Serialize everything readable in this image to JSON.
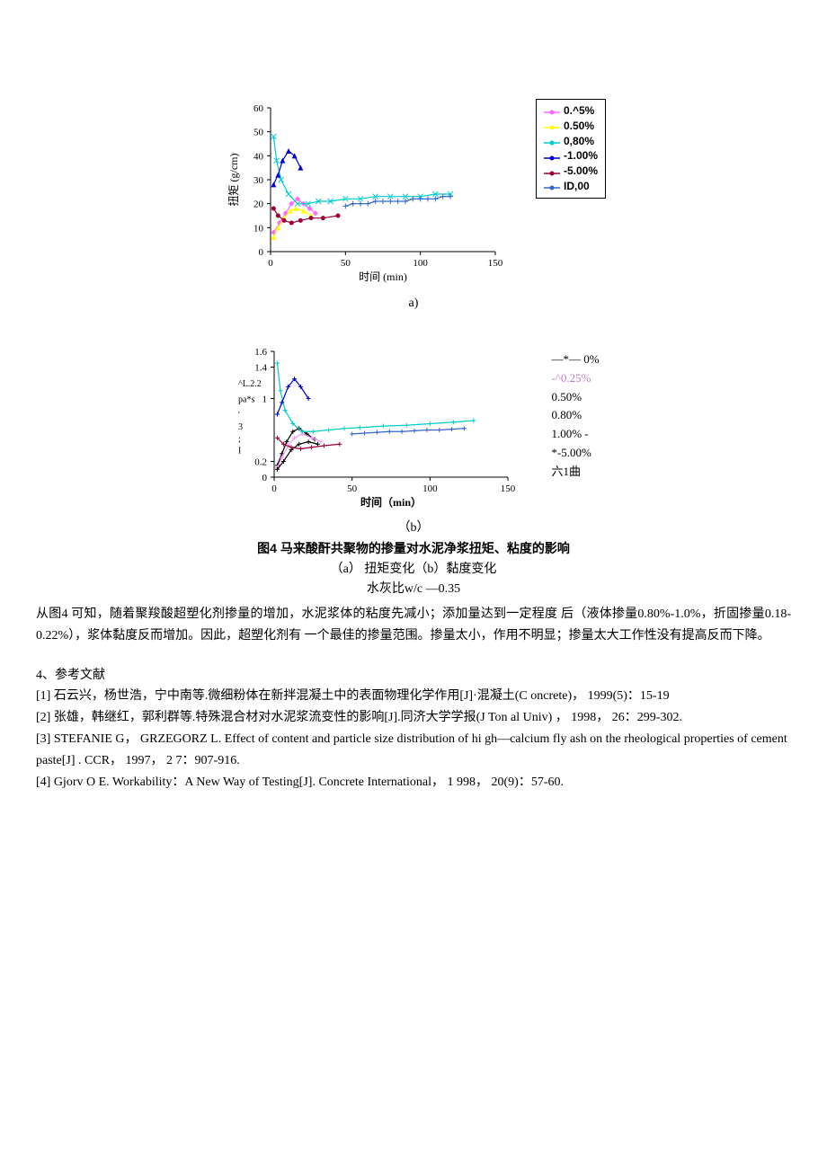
{
  "chart_a": {
    "type": "line",
    "categories": [
      0,
      50,
      100,
      150
    ],
    "ylim": [
      0,
      60
    ],
    "ytick_step": 10,
    "xlabel": "时间 (min)",
    "ylabel": "扭矩 (g/cm)",
    "label_fontsize": 12,
    "background_color": "#ffffff",
    "axis_color": "#000000",
    "series": [
      {
        "label": "0.^5%",
        "color": "#ff66ff",
        "marker": "diamond",
        "points": [
          [
            2,
            8
          ],
          [
            6,
            12
          ],
          [
            10,
            16
          ],
          [
            14,
            20
          ],
          [
            18,
            22
          ],
          [
            22,
            20
          ],
          [
            26,
            18
          ],
          [
            30,
            16
          ]
        ]
      },
      {
        "label": "0.50%",
        "color": "#ffff00",
        "marker": "triangle",
        "points": [
          [
            2,
            6
          ],
          [
            5,
            10
          ],
          [
            9,
            14
          ],
          [
            13,
            17
          ],
          [
            17,
            18
          ],
          [
            22,
            17
          ],
          [
            27,
            15
          ]
        ]
      },
      {
        "label": "0,80%",
        "color": "#00cccc",
        "marker": "x",
        "points": [
          [
            2,
            48
          ],
          [
            4,
            38
          ],
          [
            7,
            30
          ],
          [
            12,
            24
          ],
          [
            18,
            20
          ],
          [
            25,
            20
          ],
          [
            32,
            21
          ],
          [
            40,
            21
          ],
          [
            50,
            22
          ],
          [
            60,
            22
          ],
          [
            70,
            23
          ],
          [
            80,
            23
          ],
          [
            90,
            23
          ],
          [
            100,
            23
          ],
          [
            110,
            24
          ],
          [
            120,
            24
          ]
        ]
      },
      {
        "label": "-1.00%",
        "color": "#0000cc",
        "marker": "triangle",
        "points": [
          [
            2,
            28
          ],
          [
            5,
            32
          ],
          [
            8,
            38
          ],
          [
            12,
            42
          ],
          [
            16,
            40
          ],
          [
            20,
            35
          ]
        ]
      },
      {
        "label": "-5.00%",
        "color": "#990033",
        "marker": "star",
        "points": [
          [
            2,
            18
          ],
          [
            5,
            15
          ],
          [
            9,
            13
          ],
          [
            14,
            12
          ],
          [
            20,
            13
          ],
          [
            27,
            14
          ],
          [
            35,
            14
          ],
          [
            45,
            15
          ]
        ]
      },
      {
        "label": "ID,00",
        "color": "#3366cc",
        "marker": "plus",
        "points": [
          [
            50,
            19
          ],
          [
            55,
            20
          ],
          [
            60,
            20
          ],
          [
            65,
            20
          ],
          [
            70,
            21
          ],
          [
            75,
            21
          ],
          [
            80,
            21
          ],
          [
            85,
            21
          ],
          [
            90,
            21
          ],
          [
            95,
            22
          ],
          [
            100,
            22
          ],
          [
            105,
            22
          ],
          [
            110,
            22
          ],
          [
            115,
            23
          ],
          [
            120,
            23
          ]
        ]
      }
    ]
  },
  "caption_a": "a)",
  "chart_b": {
    "type": "line",
    "categories": [
      0,
      50,
      100,
      150
    ],
    "ylim": [
      0,
      1.6
    ],
    "yticks": [
      0,
      0.2,
      1,
      1.4,
      1.6
    ],
    "ytick_labels": [
      "0",
      "0.2",
      "1",
      "1.4",
      "1.6"
    ],
    "mid_labels": [
      "^L.2.2",
      "pa*s",
      "'",
      "3",
      ";",
      "I"
    ],
    "xlabel": "时间（min）",
    "label_fontsize": 12,
    "background_color": "#ffffff",
    "axis_color": "#000000",
    "series": [
      {
        "label": "—*—  0%",
        "color": "#000000",
        "points": [
          [
            2,
            0.15
          ],
          [
            5,
            0.3
          ],
          [
            8,
            0.45
          ],
          [
            12,
            0.58
          ],
          [
            16,
            0.62
          ],
          [
            21,
            0.55
          ],
          [
            26,
            0.48
          ]
        ]
      },
      {
        "label": "-^0.25%",
        "color": "#ff99ff",
        "points": [
          [
            2,
            0.12
          ],
          [
            5,
            0.25
          ],
          [
            9,
            0.4
          ],
          [
            13,
            0.5
          ],
          [
            18,
            0.55
          ],
          [
            24,
            0.5
          ],
          [
            30,
            0.45
          ]
        ]
      },
      {
        "label": "0.50%",
        "color": "#000000",
        "points": [
          [
            2,
            0.1
          ],
          [
            6,
            0.2
          ],
          [
            11,
            0.35
          ],
          [
            16,
            0.42
          ],
          [
            22,
            0.45
          ],
          [
            28,
            0.42
          ]
        ]
      },
      {
        "label": "0.80%",
        "color": "#00cccc",
        "points": [
          [
            2,
            1.45
          ],
          [
            4,
            1.1
          ],
          [
            7,
            0.85
          ],
          [
            12,
            0.68
          ],
          [
            18,
            0.58
          ],
          [
            25,
            0.58
          ],
          [
            35,
            0.6
          ],
          [
            45,
            0.62
          ],
          [
            55,
            0.63
          ],
          [
            70,
            0.65
          ],
          [
            85,
            0.66
          ],
          [
            100,
            0.68
          ],
          [
            115,
            0.7
          ],
          [
            128,
            0.72
          ]
        ]
      },
      {
        "label": "1.00% -",
        "color": "#0000cc",
        "points": [
          [
            2,
            0.8
          ],
          [
            5,
            0.95
          ],
          [
            9,
            1.15
          ],
          [
            13,
            1.25
          ],
          [
            17,
            1.15
          ],
          [
            22,
            1.0
          ]
        ]
      },
      {
        "label": "*-5.00%",
        "color": "#990033",
        "points": [
          [
            2,
            0.5
          ],
          [
            6,
            0.42
          ],
          [
            11,
            0.38
          ],
          [
            17,
            0.36
          ],
          [
            24,
            0.38
          ],
          [
            32,
            0.4
          ],
          [
            42,
            0.42
          ]
        ]
      },
      {
        "label": "六1曲",
        "color": "#3366cc",
        "points": [
          [
            50,
            0.55
          ],
          [
            58,
            0.56
          ],
          [
            66,
            0.57
          ],
          [
            74,
            0.58
          ],
          [
            82,
            0.58
          ],
          [
            90,
            0.59
          ],
          [
            98,
            0.6
          ],
          [
            106,
            0.6
          ],
          [
            114,
            0.61
          ],
          [
            122,
            0.62
          ]
        ]
      }
    ]
  },
  "caption_b": "（b）",
  "figure_title": "图4  马来酸酐共聚物的掺量对水泥净浆扭矩、粘度的影响",
  "figure_sub1": "（a）       扭矩变化（b）黏度变化",
  "figure_sub2": "水灰比w/c —0.35",
  "body": "从图4 可知，随着聚羧酸超塑化剂掺量的增加，水泥浆体的粘度先减小；添加量达到一定程度 后（液体掺量0.80%-1.0%，折固掺量0.18-0.22%），浆体黏度反而增加。因此，超塑化剂有 一个最佳的掺量范围。掺量太小，作用不明显；掺量太大工作性没有提高反而下降。",
  "refs_heading": "4、参考文献",
  "refs": [
    "[1]  石云兴，杨世浩，宁中南等.微细粉体在新拌混凝土中的表面物理化学作用[J]·混凝土(C oncrete)，  1999(5)：15-19",
    "[2]  张雄，韩继红，郭利群等.特殊混合材对水泥浆流变性的影响[J].同济大学学报(J Ton al Univ) ，  1998， 26：299-302.",
    "[3] STEFANIE G，  GRZEGORZ L. Effect of content and particle size distribution of hi gh—calcium fly ash on the rheological properties of cement paste[J] . CCR，  1997，  2 7：907-916.",
    "[4] Gjorv O E.  Workability：A New Way of Testing[J].  Concrete International，  1 998，  20(9)：57-60."
  ]
}
